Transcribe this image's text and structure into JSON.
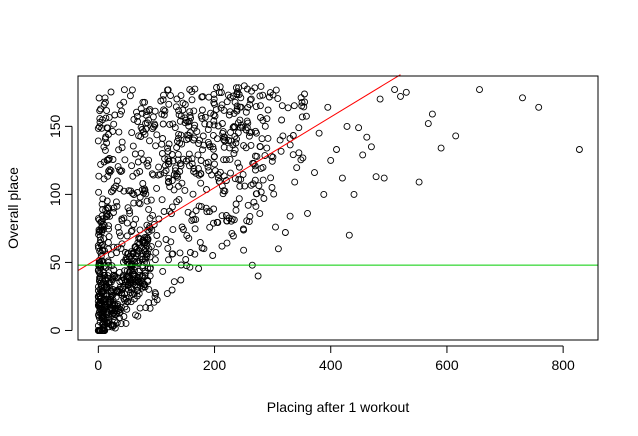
{
  "chart_data": {
    "type": "scatter",
    "xlabel": "Placing after 1 workout",
    "ylabel": "Overall place",
    "xlim": [
      -35,
      860
    ],
    "ylim": [
      -7,
      187
    ],
    "xticks": [
      0,
      200,
      400,
      600,
      800
    ],
    "yticks": [
      0,
      50,
      100,
      150
    ],
    "grid": false,
    "marker": "open-circle",
    "colors": {
      "points": "#000000",
      "fit_line": "#ff0000",
      "hline": "#00cc00"
    },
    "fit_line": {
      "x": [
        -35,
        520
      ],
      "y": [
        44,
        188
      ]
    },
    "hline": {
      "y": 48
    },
    "outliers": [
      [
        828,
        133
      ],
      [
        758,
        164
      ],
      [
        730,
        171
      ],
      [
        656,
        177
      ],
      [
        615,
        143
      ],
      [
        590,
        134
      ],
      [
        575,
        159
      ],
      [
        568,
        152
      ],
      [
        552,
        109
      ],
      [
        530,
        175
      ],
      [
        520,
        172
      ],
      [
        510,
        177
      ],
      [
        492,
        112
      ],
      [
        485,
        170
      ],
      [
        478,
        113
      ],
      [
        470,
        135
      ],
      [
        462,
        142
      ],
      [
        455,
        129
      ],
      [
        448,
        149
      ],
      [
        440,
        100
      ],
      [
        432,
        70
      ],
      [
        428,
        150
      ],
      [
        420,
        112
      ],
      [
        410,
        133
      ],
      [
        400,
        125
      ],
      [
        395,
        164
      ],
      [
        388,
        100
      ],
      [
        380,
        145
      ],
      [
        372,
        116
      ],
      [
        360,
        86
      ],
      [
        350,
        165
      ],
      [
        345,
        149
      ],
      [
        338,
        109
      ],
      [
        330,
        84
      ],
      [
        322,
        72
      ],
      [
        310,
        60
      ],
      [
        305,
        76
      ],
      [
        298,
        128
      ],
      [
        290,
        134
      ],
      [
        285,
        97
      ],
      [
        275,
        40
      ],
      [
        265,
        48
      ],
      [
        250,
        59
      ],
      [
        245,
        111
      ],
      [
        240,
        123
      ]
    ]
  }
}
